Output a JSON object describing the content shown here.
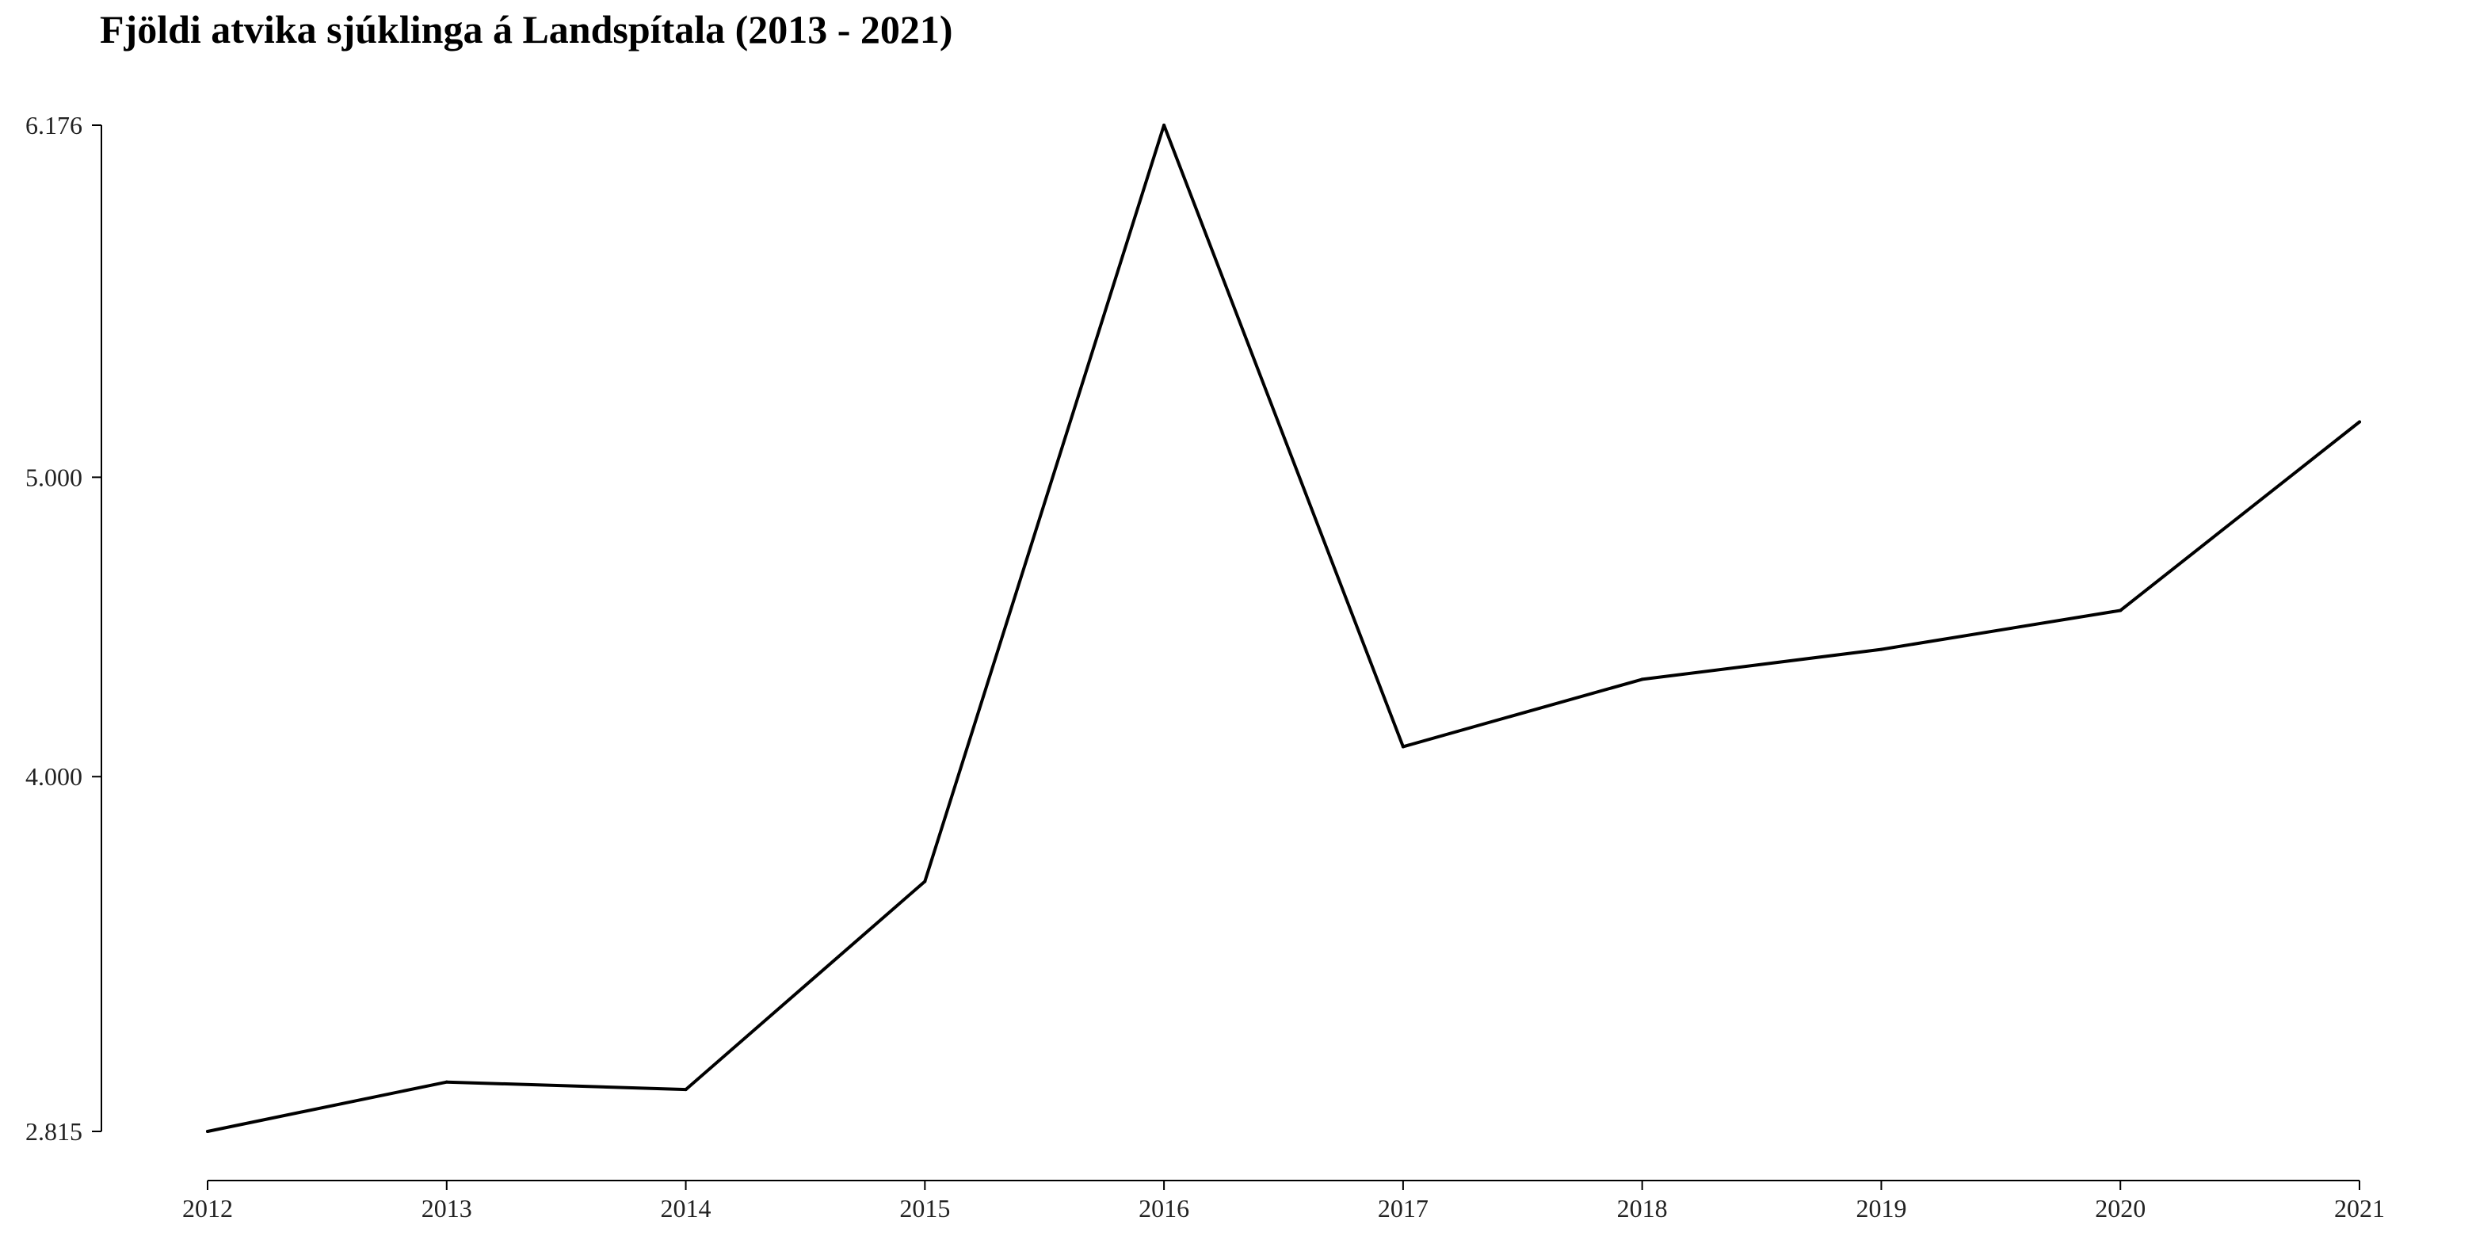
{
  "chart_data": {
    "type": "line",
    "title": "Fjöldi atvika sjúklinga á Landspítala (2013 - 2021)",
    "xlabel": "",
    "ylabel": "",
    "x": [
      2012,
      2013,
      2014,
      2015,
      2016,
      2017,
      2018,
      2019,
      2020,
      2021
    ],
    "series": [
      {
        "values": [
          2815,
          2980,
          2955,
          3650,
          6176,
          4100,
          4325,
          4425,
          4555,
          5185
        ]
      }
    ],
    "xlim": [
      2012,
      2021
    ],
    "ylim": [
      2815,
      6176
    ],
    "x_ticks": [
      "2012",
      "2013",
      "2014",
      "2015",
      "2016",
      "2017",
      "2018",
      "2019",
      "2020",
      "2021"
    ],
    "y_ticks": [
      {
        "value": 2815,
        "label": "2.815"
      },
      {
        "value": 4000,
        "label": "4.000"
      },
      {
        "value": 5000,
        "label": "5.000"
      },
      {
        "value": 6176,
        "label": "6.176"
      }
    ],
    "line_color": "#000000",
    "axis_color": "#000000",
    "grid": false,
    "legend": "none"
  }
}
